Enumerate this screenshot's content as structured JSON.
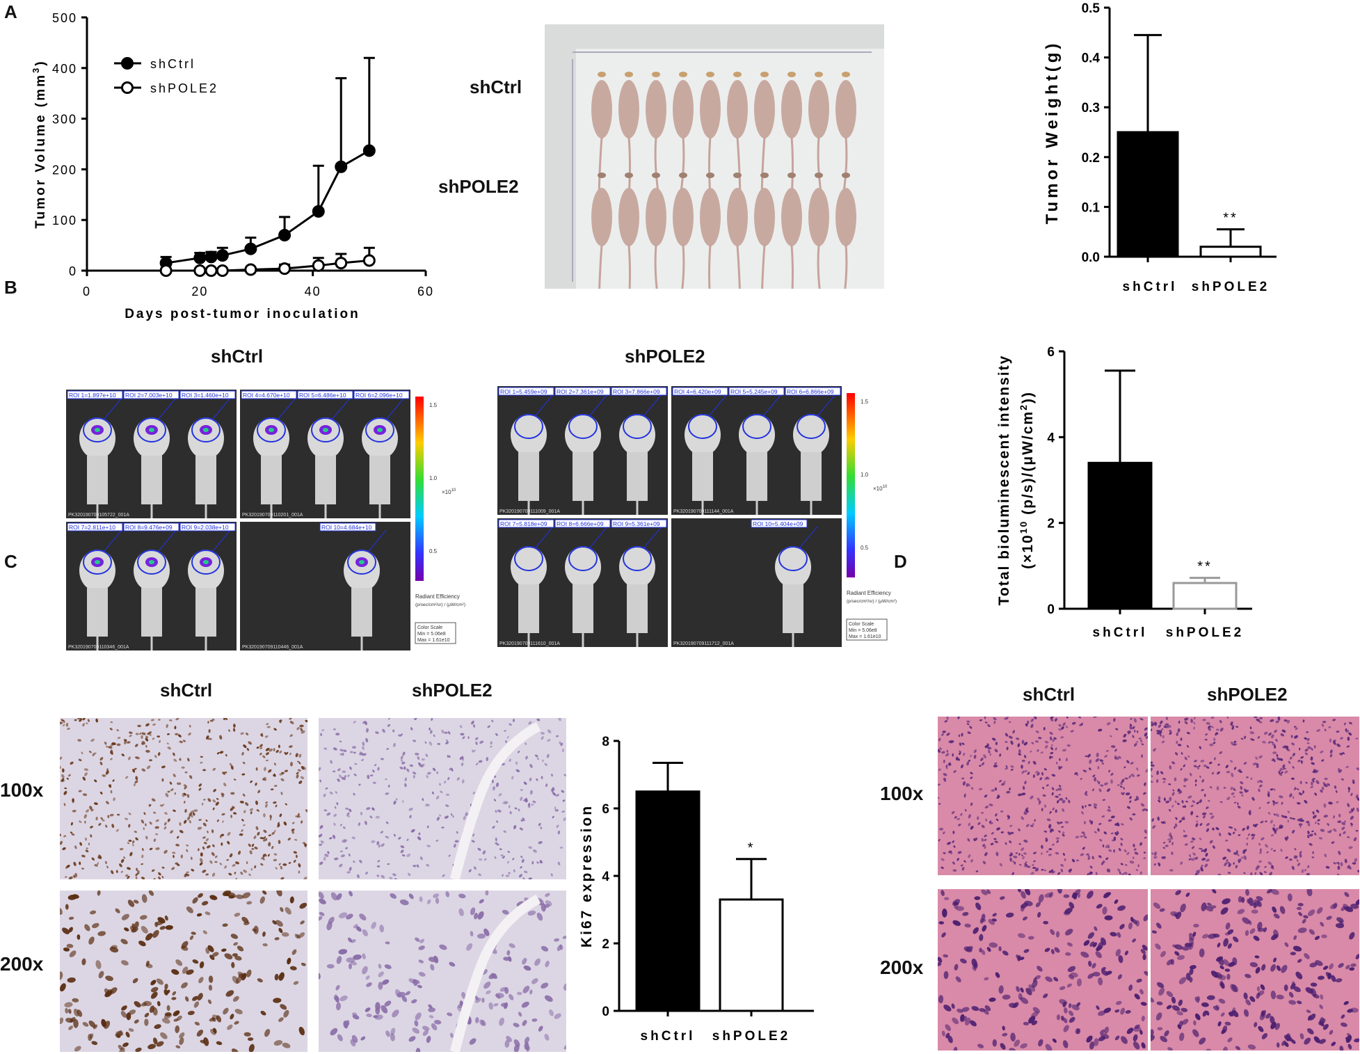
{
  "panels": {
    "a": "A",
    "b": "B",
    "c": "C",
    "d": "D"
  },
  "conditions": {
    "ctrl": "shCtrl",
    "kd": "shPOLE2"
  },
  "magnifications": {
    "low": "100x",
    "high": "200x"
  },
  "colors": {
    "ctrl_bar": "#000000",
    "kd_bar": "#ffffff",
    "kd_bar_outline_b": "#999999",
    "ihc_bg": "#dcd6e4",
    "he_bg": "#d98aa8",
    "ivis_bg": "#2d2d2d"
  },
  "chart_data": [
    {
      "id": "growth",
      "type": "line",
      "xlabel": "Days post-tumor inoculation",
      "ylabel": "Tumor Volume (mm3)",
      "ylabel_main": "Tumor Volume (mm",
      "ylabel_sup": "3",
      "ylabel_close": ")",
      "xlim": [
        0,
        60
      ],
      "ylim": [
        0,
        500
      ],
      "xticks": [
        0,
        20,
        40,
        60
      ],
      "yticks": [
        0,
        100,
        200,
        300,
        400,
        500
      ],
      "legend": "top-left",
      "series": [
        {
          "name": "shCtrl",
          "marker": "filled-circle",
          "x": [
            14,
            20,
            22,
            24,
            29,
            35,
            41,
            45,
            50
          ],
          "y": [
            15,
            25,
            27,
            30,
            43,
            70,
            117,
            205,
            237
          ],
          "err": [
            12,
            10,
            10,
            15,
            22,
            36,
            90,
            175,
            183
          ]
        },
        {
          "name": "shPOLE2",
          "marker": "open-circle",
          "x": [
            14,
            20,
            22,
            24,
            29,
            35,
            41,
            45,
            50
          ],
          "y": [
            0,
            0,
            0,
            0,
            2,
            4,
            10,
            15,
            20
          ],
          "err": [
            0,
            0,
            0,
            0,
            3,
            8,
            15,
            18,
            25
          ]
        }
      ]
    },
    {
      "id": "weight",
      "type": "bar",
      "ylabel": "Tumor Weight(g)",
      "categories": [
        "shCtrl",
        "shPOLE2"
      ],
      "values": [
        0.25,
        0.02
      ],
      "err": [
        0.195,
        0.035
      ],
      "ylim": [
        0,
        0.5
      ],
      "yticks": [
        "0.0",
        "0.1",
        "0.2",
        "0.3",
        "0.4",
        "0.5"
      ],
      "annotations": [
        "",
        "**"
      ]
    },
    {
      "id": "biolum",
      "type": "bar",
      "ylabel_line1": "Total bioluminescent intensity",
      "ylabel_line2": "(×10",
      "ylabel_exp": "10",
      "ylabel_line2b": "  (p/s)/(μW/cm",
      "ylabel_sup2": "2",
      "ylabel_close": "))",
      "categories": [
        "shCtrl",
        "shPOLE2"
      ],
      "values": [
        3.4,
        0.6
      ],
      "err": [
        2.15,
        0.12
      ],
      "ylim": [
        0,
        6
      ],
      "yticks": [
        "0",
        "2",
        "4",
        "6"
      ],
      "annotations": [
        "",
        "**"
      ]
    },
    {
      "id": "ki67",
      "type": "bar",
      "ylabel": "Ki67 expression",
      "categories": [
        "shCtrl",
        "shPOLE2"
      ],
      "values": [
        6.5,
        3.3
      ],
      "err": [
        0.85,
        1.2
      ],
      "ylim": [
        0,
        8
      ],
      "yticks": [
        "0",
        "2",
        "4",
        "6",
        "8"
      ],
      "annotations": [
        "",
        "*"
      ]
    }
  ],
  "ivis": {
    "ctrl": {
      "top_left": [
        "ROI 1=1.897e+10",
        "ROI 2=7.003e+10",
        "ROI 3=1.460e+10"
      ],
      "top_right": [
        "ROI 4=4.670e+10",
        "ROI 5=6.486e+10",
        "ROI 6=2.096e+10"
      ],
      "bottom_left": [
        "ROI 7=2.811e+10",
        "ROI 8=9.476e+09",
        "ROI 9=2.038e+10"
      ],
      "bottom_right": [
        "ROI 10=4.684e+10"
      ],
      "ids": [
        "PK320190709105722_001A",
        "PK320190709110201_001A",
        "PK320190709110346_001A",
        "PK320190709110446_001A"
      ],
      "scale_ticks": [
        "1.5",
        "1.0",
        "0.5"
      ],
      "scale_unit": "×10",
      "scale_unit_exp": "10",
      "scale_title": "Radiant Efficiency",
      "scale_units": "(p/sec/cm²/sr) / (μW/cm²)",
      "scale_box": [
        "Color Scale",
        "Min = 5.06e8",
        "Max = 1.61e10"
      ]
    },
    "kd": {
      "top_left": [
        "ROI 1=5.459e+09",
        "ROI 2=7.361e+09",
        "ROI 3=7.866e+09"
      ],
      "top_right": [
        "ROI 4=6.420e+09",
        "ROI 5=5.245e+09",
        "ROI 6=6.866e+09"
      ],
      "bottom_left": [
        "ROI 7=5.818e+09",
        "ROI 8=6.666e+09",
        "ROI 9=5.361e+09"
      ],
      "bottom_right": [
        "ROI 10=5.404e+09"
      ],
      "ids": [
        "PK320190709111009_001A",
        "PK320190709111144_001A",
        "PK320190709111610_001A",
        "PK320190709111712_001A"
      ],
      "scale_ticks": [
        "1.5",
        "1.0",
        "0.5"
      ],
      "scale_unit": "×10",
      "scale_unit_exp": "10",
      "scale_title": "Radiant Efficiency",
      "scale_units": "(p/sec/cm²/sr) / (μW/cm²)",
      "scale_box": [
        "Color Scale",
        "Min = 5.06e8",
        "Max = 1.61e10"
      ]
    }
  }
}
